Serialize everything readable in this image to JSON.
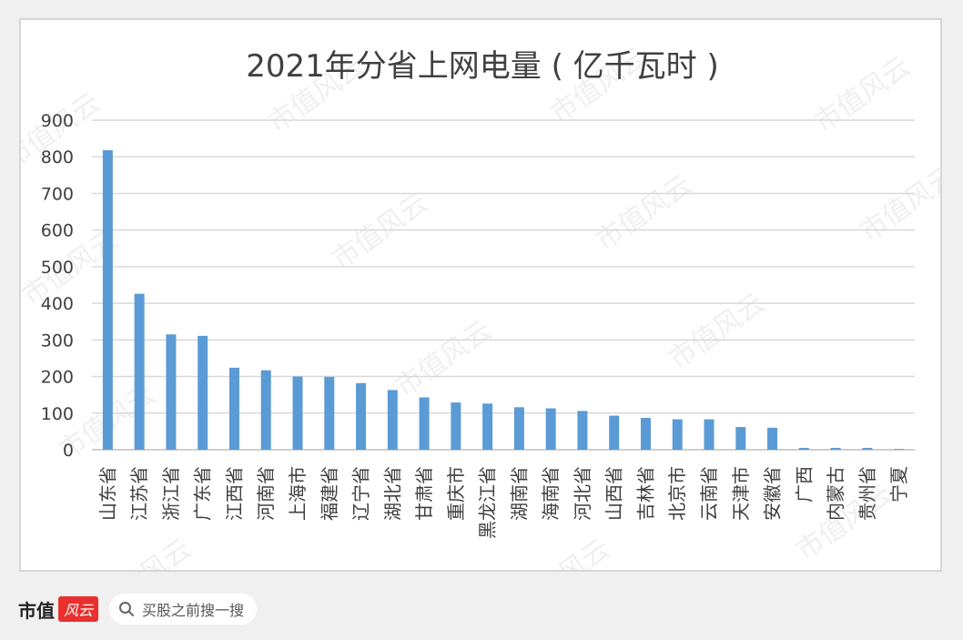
{
  "chart_data": {
    "type": "bar",
    "title": "2021年分省上网电量 ( 亿千瓦时 )",
    "ylim": [
      0,
      900
    ],
    "yticks": [
      0,
      100,
      200,
      300,
      400,
      500,
      600,
      700,
      800,
      900
    ],
    "grid": true,
    "categories": [
      "山东省",
      "江苏省",
      "浙江省",
      "广东省",
      "江西省",
      "河南省",
      "上海市",
      "福建省",
      "辽宁省",
      "湖北省",
      "甘肃省",
      "重庆市",
      "黑龙江省",
      "湖南省",
      "海南省",
      "河北省",
      "山西省",
      "吉林省",
      "北京市",
      "云南省",
      "天津市",
      "安徽省",
      "广西",
      "内蒙古",
      "贵州省",
      "宁夏"
    ],
    "values": [
      818,
      426,
      315,
      311,
      224,
      217,
      200,
      199,
      182,
      163,
      143,
      129,
      126,
      116,
      113,
      106,
      93,
      87,
      83,
      83,
      62,
      60,
      5,
      5,
      5,
      1
    ],
    "bar_color": "#5b9bd5"
  },
  "watermark": "市值风云",
  "footer": {
    "brand_name": "市值",
    "brand_badge": "风云",
    "search_text": "买股之前搜一搜"
  }
}
